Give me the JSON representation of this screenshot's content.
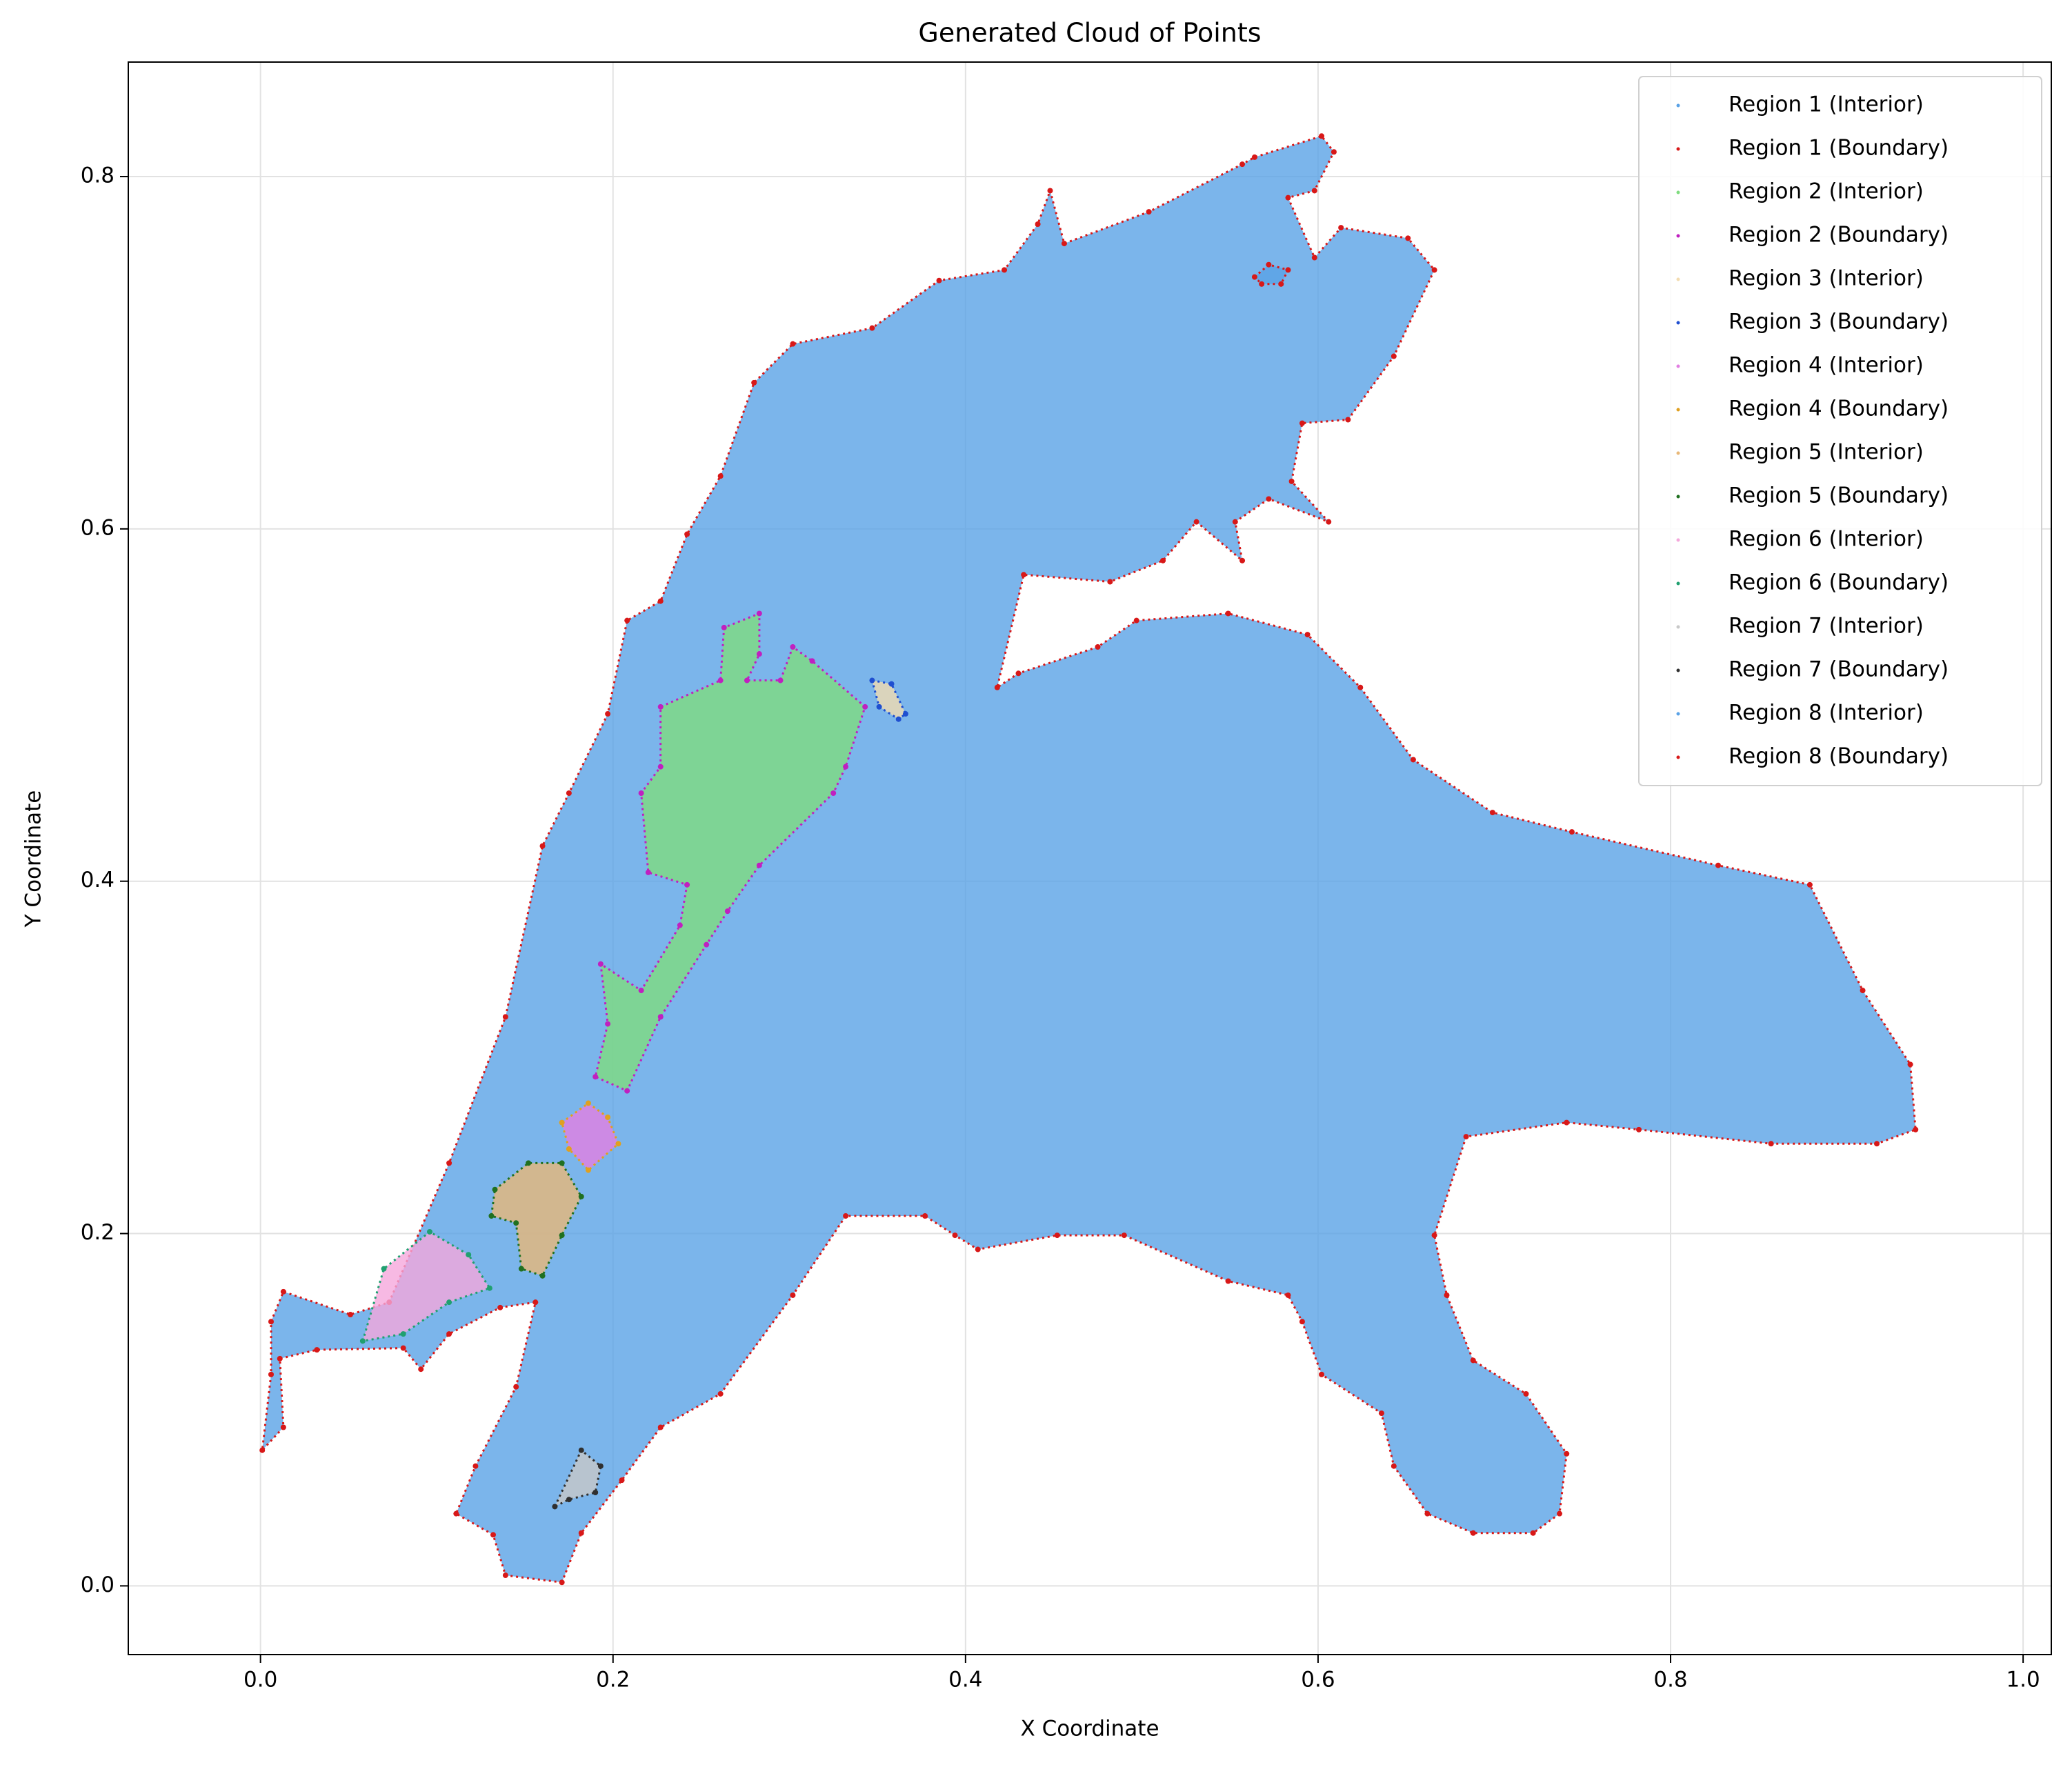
{
  "chart_data": {
    "type": "scatter",
    "title": "Generated Cloud of Points",
    "xlabel": "X Coordinate",
    "ylabel": "Y Coordinate",
    "xlim": [
      -0.075,
      1.016
    ],
    "ylim": [
      -0.039,
      0.865
    ],
    "xticks": [
      {
        "value": 0,
        "label": "0.0"
      },
      0.2,
      0.4,
      0.6,
      0.8,
      {
        "value": 1,
        "label": "1.0"
      }
    ],
    "yticks": [
      {
        "value": 0,
        "label": "0.0"
      },
      0.2,
      0.4,
      0.6,
      0.8
    ],
    "grid": true,
    "legend": "upper right",
    "series": [
      {
        "name": "Region 1 (Interior)",
        "color": "#5aa2e6"
      },
      {
        "name": "Region 1 (Boundary)",
        "color": "#d81818",
        "x": [
          0.171,
          0.139,
          0.132,
          0.111,
          0.122,
          0.145,
          0.156,
          0.136,
          0.107,
          0.091,
          0.081,
          0.032,
          0.011,
          0.013,
          0.001,
          0.006,
          0.006,
          0.013,
          0.051,
          0.073,
          0.107,
          0.139,
          0.16,
          0.175,
          0.197,
          0.208,
          0.227,
          0.242,
          0.261,
          0.28,
          0.302,
          0.347,
          0.385,
          0.422,
          0.441,
          0.448,
          0.456,
          0.504,
          0.557,
          0.564,
          0.602,
          0.609,
          0.598,
          0.583,
          0.598,
          0.613,
          0.651,
          0.666,
          0.643,
          0.617,
          0.591,
          0.585,
          0.606,
          0.572,
          0.553,
          0.557,
          0.531,
          0.512,
          0.482,
          0.433,
          0.418,
          0.43,
          0.475,
          0.497,
          0.549,
          0.594,
          0.624,
          0.654,
          0.699,
          0.744,
          0.827,
          0.879,
          0.909,
          0.936,
          0.939,
          0.917,
          0.857,
          0.782,
          0.741,
          0.684,
          0.666,
          0.673,
          0.688,
          0.718,
          0.741,
          0.737,
          0.722,
          0.688,
          0.662,
          0.643,
          0.636,
          0.602,
          0.591,
          0.583,
          0.549,
          0.49,
          0.452,
          0.407,
          0.394,
          0.377,
          0.332,
          0.302,
          0.261,
          0.227,
          0.205,
          0.182
        ],
        "y": [
          0.002,
          0.006,
          0.029,
          0.041,
          0.068,
          0.113,
          0.161,
          0.158,
          0.143,
          0.123,
          0.135,
          0.134,
          0.129,
          0.09,
          0.077,
          0.12,
          0.15,
          0.167,
          0.154,
          0.161,
          0.24,
          0.323,
          0.42,
          0.45,
          0.495,
          0.548,
          0.559,
          0.597,
          0.63,
          0.683,
          0.705,
          0.714,
          0.741,
          0.747,
          0.773,
          0.792,
          0.762,
          0.78,
          0.807,
          0.811,
          0.823,
          0.814,
          0.792,
          0.788,
          0.754,
          0.771,
          0.765,
          0.747,
          0.698,
          0.662,
          0.66,
          0.627,
          0.604,
          0.617,
          0.604,
          0.582,
          0.604,
          0.582,
          0.57,
          0.574,
          0.51,
          0.518,
          0.533,
          0.548,
          0.552,
          0.54,
          0.51,
          0.469,
          0.439,
          0.428,
          0.409,
          0.398,
          0.338,
          0.296,
          0.259,
          0.251,
          0.251,
          0.259,
          0.263,
          0.255,
          0.199,
          0.165,
          0.128,
          0.109,
          0.075,
          0.041,
          0.03,
          0.03,
          0.041,
          0.068,
          0.098,
          0.12,
          0.15,
          0.165,
          0.173,
          0.199,
          0.199,
          0.191,
          0.199,
          0.21,
          0.21,
          0.165,
          0.109,
          0.09,
          0.06,
          0.03
        ]
      },
      {
        "name": "Region 2 (Interior)",
        "color": "#7fdc7f"
      },
      {
        "name": "Region 2 (Boundary)",
        "color": "#c020c0",
        "x": [
          0.263,
          0.261,
          0.227,
          0.227,
          0.216,
          0.22,
          0.242,
          0.238,
          0.216,
          0.193,
          0.197,
          0.19,
          0.208,
          0.227,
          0.253,
          0.265,
          0.283,
          0.325,
          0.332,
          0.343,
          0.313,
          0.302,
          0.295,
          0.276,
          0.283,
          0.283
        ],
        "y": [
          0.544,
          0.514,
          0.499,
          0.465,
          0.45,
          0.405,
          0.398,
          0.375,
          0.338,
          0.353,
          0.319,
          0.289,
          0.281,
          0.323,
          0.364,
          0.383,
          0.409,
          0.45,
          0.465,
          0.499,
          0.525,
          0.533,
          0.514,
          0.514,
          0.529,
          0.552
        ]
      },
      {
        "name": "Region 3 (Interior)",
        "color": "#f3dcb0"
      },
      {
        "name": "Region 3 (Boundary)",
        "color": "#1f4fd0",
        "x": [
          0.347,
          0.358,
          0.366,
          0.362,
          0.351
        ],
        "y": [
          0.514,
          0.512,
          0.495,
          0.492,
          0.499
        ]
      },
      {
        "name": "Region 4 (Interior)",
        "color": "#e27fe2"
      },
      {
        "name": "Region 4 (Boundary)",
        "color": "#e0a020",
        "x": [
          0.171,
          0.186,
          0.197,
          0.203,
          0.186,
          0.175
        ],
        "y": [
          0.263,
          0.274,
          0.266,
          0.251,
          0.236,
          0.248
        ]
      },
      {
        "name": "Region 5 (Interior)",
        "color": "#e8b878"
      },
      {
        "name": "Region 5 (Boundary)",
        "color": "#207020",
        "x": [
          0.133,
          0.152,
          0.171,
          0.182,
          0.171,
          0.16,
          0.148,
          0.145,
          0.131
        ],
        "y": [
          0.225,
          0.24,
          0.24,
          0.221,
          0.199,
          0.176,
          0.18,
          0.206,
          0.21
        ]
      },
      {
        "name": "Region 6 (Interior)",
        "color": "#f5a8dc"
      },
      {
        "name": "Region 6 (Boundary)",
        "color": "#20a070",
        "x": [
          0.058,
          0.07,
          0.096,
          0.118,
          0.13,
          0.107,
          0.081
        ],
        "y": [
          0.139,
          0.18,
          0.201,
          0.188,
          0.169,
          0.161,
          0.143
        ]
      },
      {
        "name": "Region 7 (Interior)",
        "color": "#c8c8c8"
      },
      {
        "name": "Region 7 (Boundary)",
        "color": "#303030",
        "x": [
          0.167,
          0.182,
          0.193,
          0.19,
          0.175
        ],
        "y": [
          0.045,
          0.077,
          0.068,
          0.053,
          0.049
        ]
      },
      {
        "name": "Region 8 (Interior)",
        "color": "#5aa2e6"
      },
      {
        "name": "Region 8 (Boundary)",
        "color": "#d81818",
        "x": [
          0.564,
          0.572,
          0.583,
          0.579,
          0.568
        ],
        "y": [
          0.743,
          0.75,
          0.747,
          0.739,
          0.739
        ]
      }
    ]
  }
}
